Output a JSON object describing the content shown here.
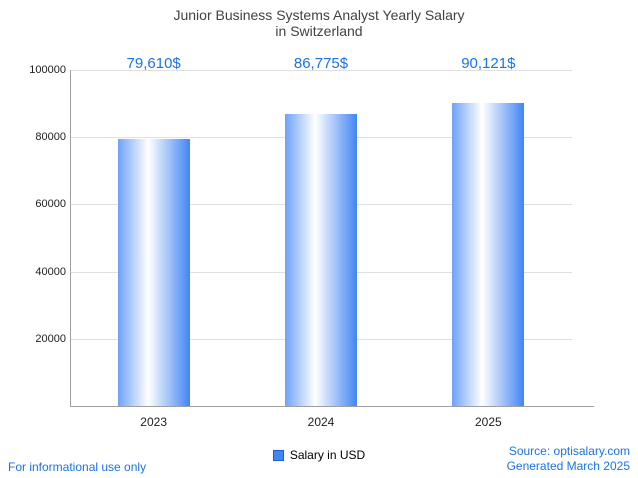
{
  "title": {
    "line1": "Junior Business Systems Analyst Yearly Salary",
    "line2": "in Switzerland"
  },
  "chart_data": {
    "type": "bar",
    "title": "Junior Business Systems Analyst Yearly Salary in Switzerland",
    "categories": [
      "2023",
      "2024",
      "2025"
    ],
    "values": [
      79610,
      86775,
      90121
    ],
    "value_labels": [
      "79,610$",
      "86,775$",
      "90,121$"
    ],
    "xlabel": "",
    "ylabel": "",
    "ylim": [
      0,
      100000
    ],
    "yticks": [
      20000,
      40000,
      60000,
      80000,
      100000
    ],
    "ytick_labels": [
      "20000",
      "40000",
      "60000",
      "80000",
      "100000"
    ],
    "grid": true,
    "legend_position": "bottom",
    "series_name": "Salary in USD",
    "colors": {
      "bar_gradient_left": "#6ea2f8",
      "bar_gradient_center": "#ffffff",
      "bar_gradient_right": "#4285f4",
      "value_label": "#1a73e8",
      "gridline": "#e0e0e0",
      "axis": "#9e9e9e"
    }
  },
  "legend": {
    "label": "Salary in USD",
    "swatch_color": "#4285f4",
    "swatch_border": "#1a5fd0"
  },
  "footer": {
    "left": "For informational use only",
    "source": "Source: optisalary.com",
    "generated": "Generated March 2025"
  }
}
